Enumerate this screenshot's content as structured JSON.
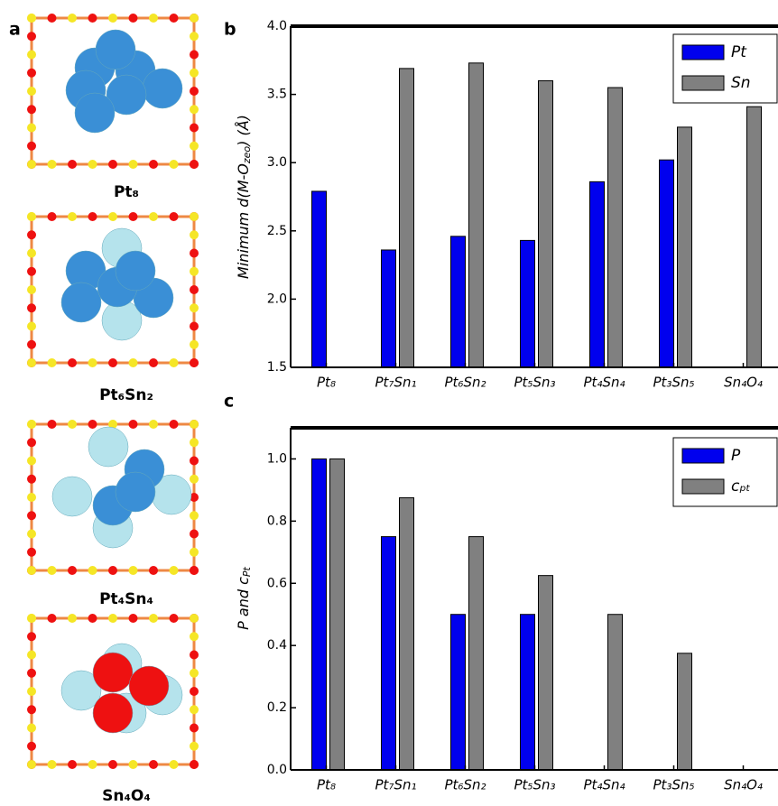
{
  "panels": [
    "a",
    "b",
    "c"
  ],
  "structures": [
    "Pt₈",
    "Pt₆Sn₂",
    "Pt₄Sn₄",
    "Sn₄O₄"
  ],
  "chart_data": [
    {
      "type": "bar",
      "ylabel": [
        "Minimum d(M-O",
        "zeo",
        ") (Å)"
      ],
      "categories": [
        "Pt₈",
        "Pt₇Sn₁",
        "Pt₆Sn₂",
        "Pt₅Sn₃",
        "Pt₄Sn₄",
        "Pt₃Sn₅",
        "Sn₄O₄"
      ],
      "series": [
        {
          "name": "Pt",
          "color": "#0000ee",
          "values": [
            2.79,
            2.36,
            2.46,
            2.43,
            2.86,
            3.02,
            null
          ]
        },
        {
          "name": "Sn",
          "color": "#808080",
          "values": [
            null,
            3.69,
            3.73,
            3.6,
            3.55,
            3.26,
            3.41
          ]
        }
      ],
      "ylim": [
        1.5,
        4.0
      ],
      "yticks": [
        1.5,
        {
          "value": 2,
          "label": "2.0"
        },
        2.5,
        {
          "value": 3,
          "label": "3.0"
        },
        3.5,
        {
          "value": 4,
          "label": "4.0"
        }
      ],
      "legend": "upper right"
    },
    {
      "type": "bar",
      "ylabel": [
        "P and c",
        "Pt"
      ],
      "categories": [
        "Pt₈",
        "Pt₇Sn₁",
        "Pt₆Sn₂",
        "Pt₅Sn₃",
        "Pt₄Sn₄",
        "Pt₃Sn₅",
        "Sn₄O₄"
      ],
      "series": [
        {
          "name": "P",
          "color": "#0000ee",
          "values": [
            1.0,
            0.75,
            0.5,
            0.5,
            null,
            null,
            null
          ]
        },
        {
          "name": "cₚₜ",
          "color": "#808080",
          "values": [
            1.0,
            0.875,
            0.75,
            0.625,
            0.5,
            0.375,
            null
          ]
        }
      ],
      "ylim": [
        0,
        1.1
      ],
      "yticks": [
        {
          "value": 0,
          "label": "0.0"
        },
        0.2,
        0.4,
        0.6,
        0.8,
        {
          "value": 1,
          "label": "1.0"
        }
      ],
      "legend": "upper right"
    }
  ]
}
